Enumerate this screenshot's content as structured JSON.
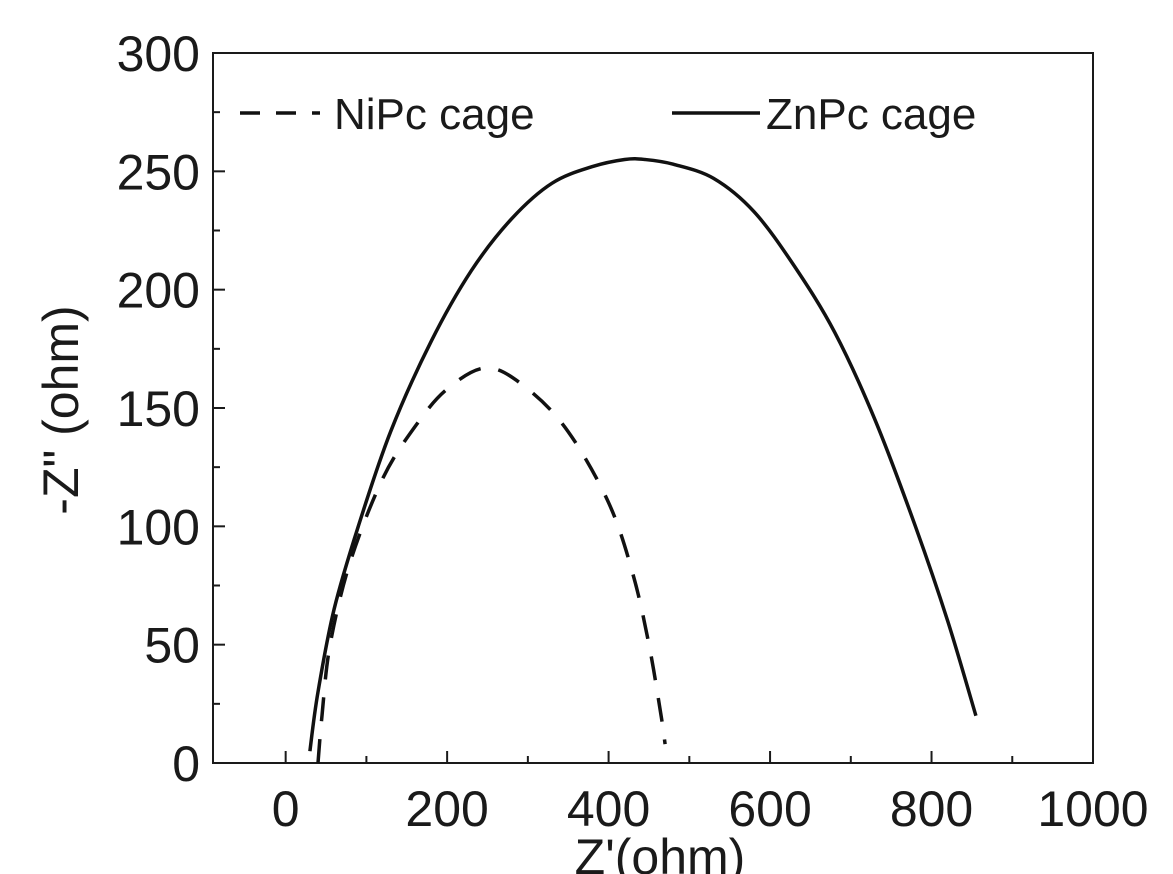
{
  "chart_data": {
    "type": "line",
    "xlabel": "Z'(ohm)",
    "ylabel": "-Z\" (ohm)",
    "xlim": [
      -90,
      1000
    ],
    "ylim": [
      0,
      300
    ],
    "x_ticks": [
      0,
      200,
      400,
      600,
      800,
      1000
    ],
    "y_ticks": [
      0,
      50,
      100,
      150,
      200,
      250,
      300
    ],
    "grid": false,
    "legend_position": "top",
    "series": [
      {
        "name": "NiPc cage",
        "style": "dashed",
        "color": "#111111",
        "points": [
          [
            40,
            0
          ],
          [
            45,
            20
          ],
          [
            55,
            50
          ],
          [
            80,
            85
          ],
          [
            120,
            120
          ],
          [
            160,
            142
          ],
          [
            200,
            158
          ],
          [
            250,
            167
          ],
          [
            300,
            158
          ],
          [
            350,
            140
          ],
          [
            400,
            110
          ],
          [
            430,
            80
          ],
          [
            450,
            50
          ],
          [
            465,
            20
          ],
          [
            470,
            8
          ]
        ]
      },
      {
        "name": "ZnPc cage",
        "style": "solid",
        "color": "#111111",
        "points": [
          [
            30,
            5
          ],
          [
            40,
            30
          ],
          [
            60,
            65
          ],
          [
            90,
            100
          ],
          [
            130,
            140
          ],
          [
            180,
            178
          ],
          [
            230,
            208
          ],
          [
            280,
            230
          ],
          [
            330,
            245
          ],
          [
            380,
            252
          ],
          [
            420,
            255
          ],
          [
            445,
            255
          ],
          [
            480,
            253
          ],
          [
            530,
            247
          ],
          [
            580,
            233
          ],
          [
            630,
            210
          ],
          [
            680,
            182
          ],
          [
            730,
            145
          ],
          [
            780,
            100
          ],
          [
            820,
            60
          ],
          [
            855,
            20
          ]
        ]
      }
    ]
  }
}
